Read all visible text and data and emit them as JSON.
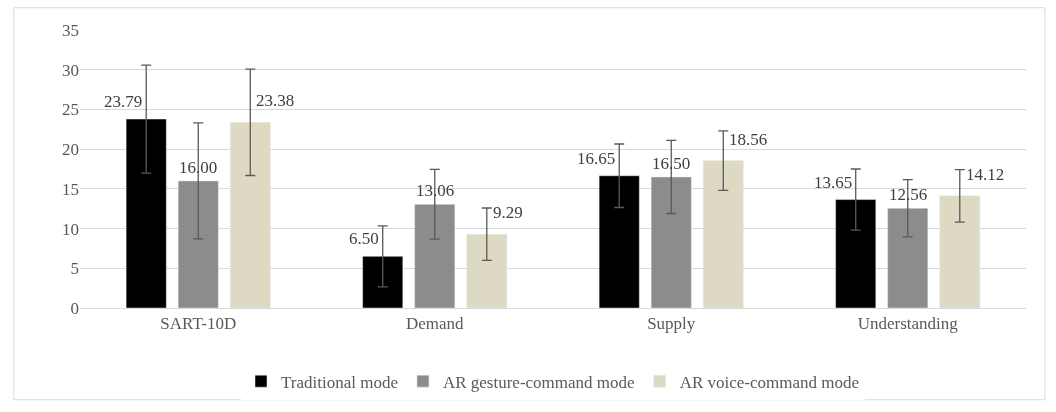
{
  "chart_data": {
    "type": "bar",
    "categories": [
      "SART-10D",
      "Demand",
      "Supply",
      "Understanding"
    ],
    "series": [
      {
        "name": "Traditional mode",
        "color": "#000000",
        "values": [
          23.79,
          6.5,
          16.65,
          13.65
        ],
        "value_labels": [
          "23.79",
          "6.50",
          "16.65",
          "13.65"
        ],
        "errors": [
          6.8,
          3.85,
          4.0,
          3.85
        ]
      },
      {
        "name": "AR gesture-command mode",
        "color": "#8c8c8c",
        "values": [
          16.0,
          13.06,
          16.5,
          12.56
        ],
        "value_labels": [
          "16.00",
          "13.06",
          "16.50",
          "12.56"
        ],
        "errors": [
          7.3,
          4.4,
          4.6,
          3.6
        ]
      },
      {
        "name": "AR voice-command mode",
        "color": "#ddd9c3",
        "values": [
          23.38,
          9.29,
          18.56,
          14.12
        ],
        "value_labels": [
          "23.38",
          "9.29",
          "18.56",
          "14.12"
        ],
        "errors": [
          6.7,
          3.3,
          3.75,
          3.3
        ]
      }
    ],
    "ylim": [
      0,
      35
    ],
    "yticks": [
      0,
      5,
      10,
      15,
      20,
      25,
      30,
      35
    ],
    "grid": "y",
    "legend": "bottom"
  }
}
